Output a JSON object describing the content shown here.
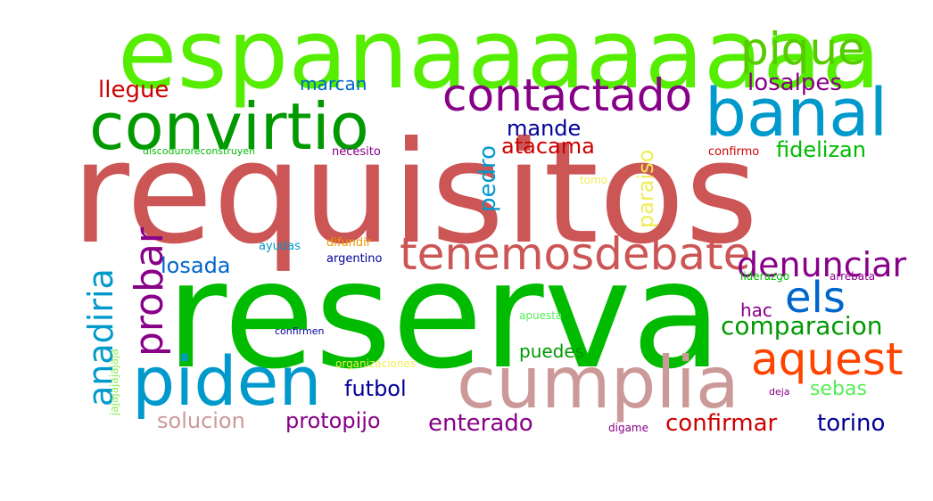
{
  "wordcloud": {
    "words": [
      {
        "text": "requisitos",
        "color": "#cc5555"
      },
      {
        "text": "reserva",
        "color": "#00bb00"
      },
      {
        "text": "espanaaaaaaaa",
        "color": "#55ee00"
      },
      {
        "text": "banal",
        "color": "#0099cc"
      },
      {
        "text": "convirtio",
        "color": "#009900"
      },
      {
        "text": "piden",
        "color": "#0099cc"
      },
      {
        "text": "cumplia",
        "color": "#cc9999"
      },
      {
        "text": "tenemosdebate",
        "color": "#cc5555"
      },
      {
        "text": "contactado",
        "color": "#880088"
      },
      {
        "text": "pique",
        "color": "#55cc00"
      },
      {
        "text": "aquest",
        "color": "#ff4400"
      },
      {
        "text": "els",
        "color": "#0066cc"
      },
      {
        "text": "probar",
        "color": "#880088"
      },
      {
        "text": "anadiria",
        "color": "#0099cc"
      },
      {
        "text": "denunciar",
        "color": "#880088"
      },
      {
        "text": "comparacion",
        "color": "#009900"
      },
      {
        "text": "losalpes",
        "color": "#880088"
      },
      {
        "text": "llegue",
        "color": "#cc0000"
      },
      {
        "text": "marcan",
        "color": "#0066cc"
      },
      {
        "text": "mande",
        "color": "#000099"
      },
      {
        "text": "atacama",
        "color": "#cc0000"
      },
      {
        "text": "pedro",
        "color": "#0099cc"
      },
      {
        "text": "paraiso",
        "color": "#eeee55"
      },
      {
        "text": "fidelizan",
        "color": "#00bb00"
      },
      {
        "text": "losada",
        "color": "#0066cc"
      },
      {
        "text": "futbol",
        "color": "#000099"
      },
      {
        "text": "solucion",
        "color": "#cc9999"
      },
      {
        "text": "protopijo",
        "color": "#880088"
      },
      {
        "text": "enterado",
        "color": "#880088"
      },
      {
        "text": "confirmar",
        "color": "#cc0000"
      },
      {
        "text": "torino",
        "color": "#000099"
      },
      {
        "text": "sebas",
        "color": "#55ee55"
      },
      {
        "text": "puedes",
        "color": "#009900"
      },
      {
        "text": "hac",
        "color": "#880088"
      },
      {
        "text": "discoduroreconstruyen",
        "color": "#00bb00"
      },
      {
        "text": "necesito",
        "color": "#880088"
      },
      {
        "text": "confirmo",
        "color": "#cc0000"
      },
      {
        "text": "tomo",
        "color": "#eeee55"
      },
      {
        "text": "ayudas",
        "color": "#0099cc"
      },
      {
        "text": "difundir",
        "color": "#ee9900"
      },
      {
        "text": "argentino",
        "color": "#000099"
      },
      {
        "text": "liderazgo",
        "color": "#00bb00"
      },
      {
        "text": "arrebata",
        "color": "#880088"
      },
      {
        "text": "apuesta",
        "color": "#55ee55"
      },
      {
        "text": "confirmen",
        "color": "#000099"
      },
      {
        "text": "organizaciones",
        "color": "#eeee55"
      },
      {
        "text": "deja",
        "color": "#880088"
      },
      {
        "text": "digame",
        "color": "#880088"
      },
      {
        "text": "jajajajajajaja",
        "color": "#88ee55"
      }
    ]
  }
}
